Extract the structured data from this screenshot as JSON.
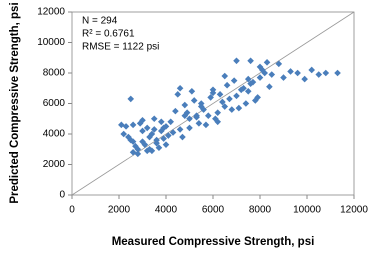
{
  "chart_data": {
    "type": "scatter",
    "xlabel": "Measured Compressive Strength, psi",
    "ylabel": "Predicted Compressive Strength, psi",
    "annotations": [
      "N = 294",
      "R² = 0.6761",
      "RMSE = 1122 psi"
    ],
    "xlim": [
      0,
      12000
    ],
    "ylim": [
      0,
      12000
    ],
    "xticks": [
      0,
      2000,
      4000,
      6000,
      8000,
      10000,
      12000
    ],
    "yticks": [
      0,
      2000,
      4000,
      6000,
      8000,
      10000,
      12000
    ],
    "color": "#4a7ebb",
    "x": [
      2100,
      2300,
      2500,
      2600,
      2700,
      2800,
      2900,
      3000,
      3100,
      3200,
      3300,
      3400,
      3500,
      3600,
      3700,
      3800,
      3900,
      4000,
      2200,
      2400,
      2600,
      2800,
      3000,
      3200,
      3400,
      3600,
      3800,
      4000,
      2500,
      3000,
      3500,
      4200,
      4400,
      4600,
      4800,
      5000,
      5200,
      5400,
      5600,
      5800,
      4300,
      4500,
      4700,
      4900,
      5100,
      5300,
      5500,
      5700,
      5900,
      4100,
      4600,
      5000,
      5500,
      6000,
      6200,
      6400,
      6600,
      6800,
      7000,
      7200,
      7400,
      7600,
      7800,
      8000,
      8200,
      8400,
      6100,
      6300,
      6500,
      6700,
      6900,
      7100,
      7300,
      7500,
      7700,
      7900,
      8100,
      6000,
      6500,
      7000,
      7500,
      8000,
      8500,
      8800,
      9000,
      9300,
      9600,
      9900,
      10200,
      10500,
      10800,
      11300,
      7600,
      8300,
      5300,
      6200,
      4800,
      2600,
      3300,
      3900
    ],
    "values": [
      4600,
      4500,
      3600,
      2800,
      3200,
      3000,
      4700,
      3500,
      3300,
      2900,
      3800,
      4000,
      4300,
      3400,
      3100,
      4200,
      3700,
      4500,
      4000,
      3800,
      4600,
      2700,
      4900,
      4400,
      2900,
      3600,
      4800,
      3300,
      6300,
      4200,
      5000,
      4800,
      5500,
      4300,
      5900,
      5000,
      6200,
      4700,
      5600,
      5200,
      4100,
      6600,
      3800,
      5400,
      6800,
      5100,
      5800,
      4600,
      6400,
      3900,
      7000,
      4400,
      6000,
      6700,
      5400,
      6100,
      7200,
      5600,
      6500,
      6900,
      6000,
      7300,
      6200,
      7700,
      8000,
      7100,
      5000,
      6600,
      5800,
      6300,
      7500,
      5700,
      7000,
      6800,
      7400,
      6400,
      8200,
      6900,
      7800,
      8800,
      7600,
      8400,
      7900,
      8600,
      7700,
      8100,
      8000,
      7600,
      8200,
      7900,
      8000,
      8000,
      8800,
      8700,
      5200,
      4800,
      5200,
      3500,
      3000,
      4400
    ]
  }
}
